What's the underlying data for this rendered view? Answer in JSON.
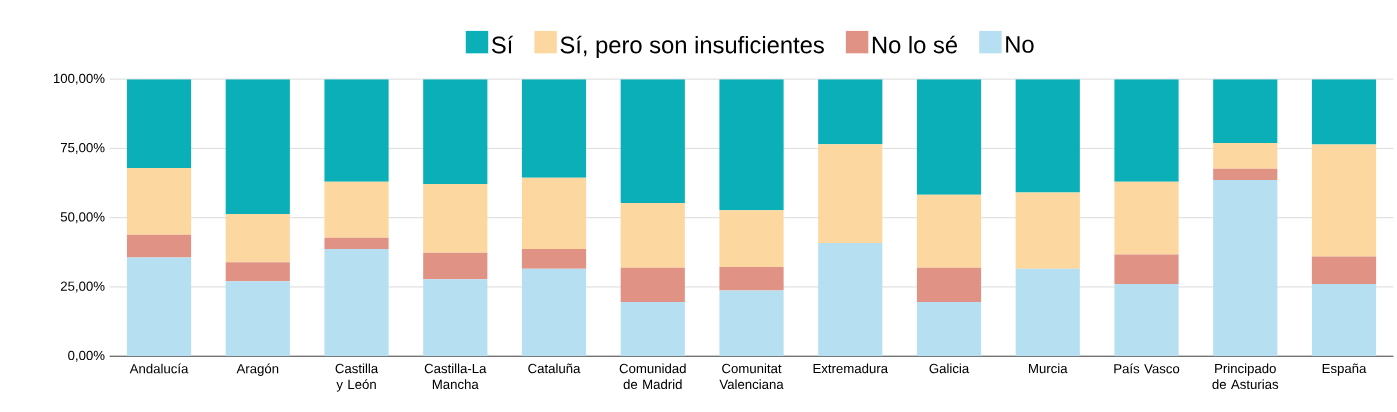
{
  "chart_data": {
    "type": "bar",
    "stacked": true,
    "categories": [
      "Andalucía",
      "Aragón",
      "Castilla y León",
      "Castilla-La Mancha",
      "Cataluña",
      "Comunidad de Madrid",
      "Comunitat Valenciana",
      "Extremadura",
      "Galicia",
      "Murcia",
      "País Vasco",
      "Principado de Asturias",
      "España"
    ],
    "series": [
      {
        "name": "No",
        "color": "#b7dff2",
        "values": [
          35.6,
          27.1,
          38.7,
          27.8,
          31.6,
          19.6,
          23.7,
          40.9,
          19.6,
          31.6,
          26.1,
          63.6,
          26.1
        ]
      },
      {
        "name": "No lo sé",
        "color": "#e09384",
        "values": [
          8.2,
          6.8,
          4.1,
          9.5,
          7.1,
          12.3,
          8.5,
          0,
          12.3,
          0,
          10.6,
          4.1,
          9.9
        ]
      },
      {
        "name": "Sí, pero son insuficientes",
        "color": "#fcd79f",
        "values": [
          24.1,
          17.4,
          20.2,
          24.9,
          25.7,
          23.4,
          20.5,
          35.6,
          26.4,
          27.5,
          26.3,
          9.3,
          40.4
        ]
      },
      {
        "name": "Sí",
        "color": "#0aafb8",
        "values": [
          32.1,
          48.7,
          37.0,
          37.8,
          35.6,
          44.7,
          47.3,
          23.5,
          41.7,
          40.9,
          37.0,
          23.0,
          23.6
        ]
      }
    ],
    "ylim": [
      0,
      100
    ],
    "yticks": [
      {
        "value": 0,
        "label": "0,00%"
      },
      {
        "value": 25,
        "label": "25,00%"
      },
      {
        "value": 50,
        "label": "50,00%"
      },
      {
        "value": 75,
        "label": "75,00%"
      },
      {
        "value": 100,
        "label": "100,00%"
      }
    ],
    "grid": "y",
    "legend": "top"
  }
}
